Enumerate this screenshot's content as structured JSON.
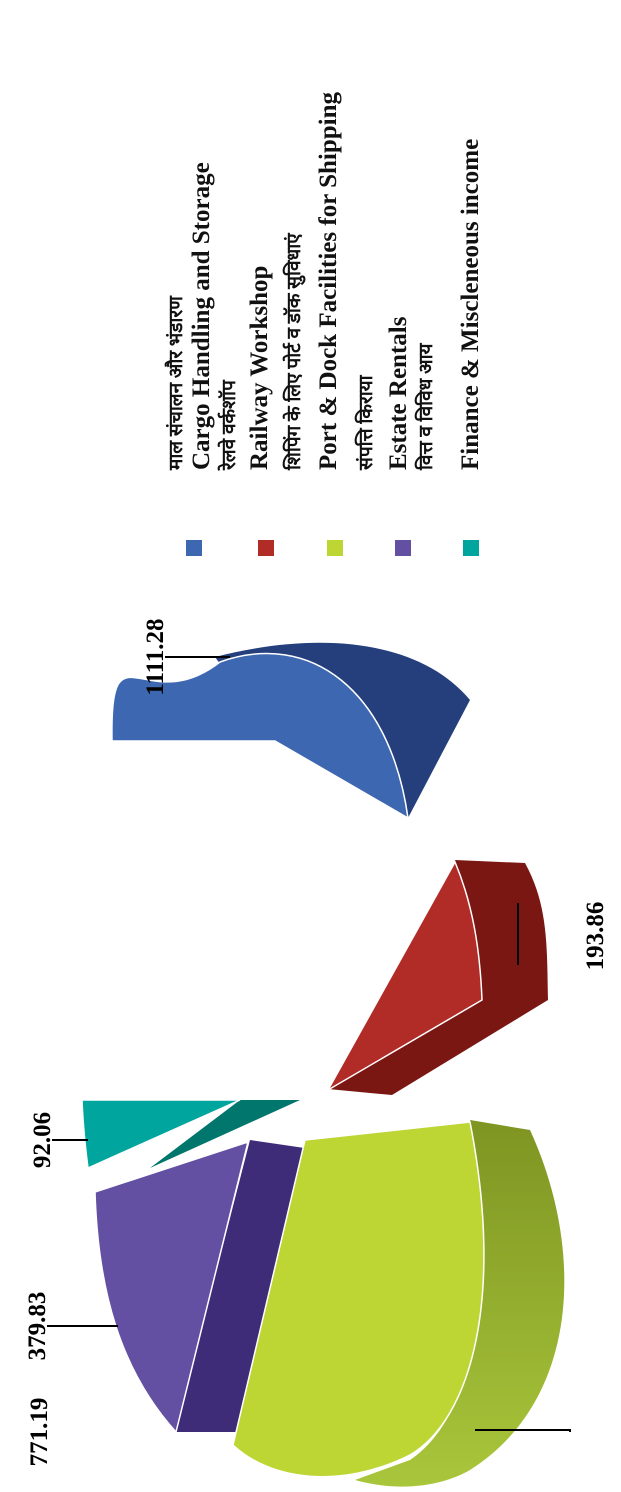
{
  "chart_data": {
    "type": "pie",
    "three_d": true,
    "exploded": true,
    "legend_placement": "right",
    "series": [
      {
        "name_hi": "माल संचालन और भंडारण",
        "name": "Cargo Handling and Storage",
        "value": 1111.28,
        "value_label": "1111.28",
        "color": "#3D67B0",
        "dark": "#253F7C"
      },
      {
        "name_hi": "रेलवे वर्कशॉप",
        "name": "Railway Workshop",
        "value": 193.86,
        "value_label": "193.86",
        "color": "#B12B27",
        "dark": "#7A1713"
      },
      {
        "name_hi": "शिपिंग के लिए पोर्ट व डॉक सुविधाएं",
        "name": "Port & Dock Facilities for Shipping",
        "value": 771.19,
        "value_label": "771.19",
        "color": "#BDD634",
        "dark": "#8AA22B"
      },
      {
        "name_hi": "संपत्ति किराया",
        "name": "Estate Rentals",
        "value": 379.83,
        "value_label": "379.83",
        "color": "#6450A2",
        "dark": "#3E2C78"
      },
      {
        "name_hi": "वित्त व विविध आय",
        "name": "Finance & Miscleneous income",
        "value": 92.06,
        "value_label": "92.06",
        "color": "#00A59D",
        "dark": "#00766D"
      }
    ]
  }
}
